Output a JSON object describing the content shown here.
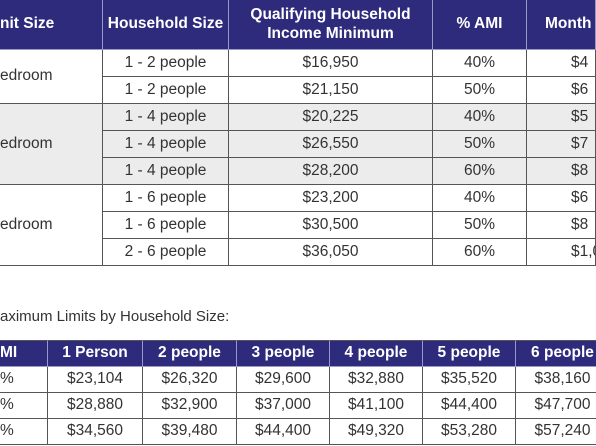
{
  "table1": {
    "header": [
      "nit Size",
      "Household Size",
      "Qualifying Household Income Minimum",
      "% AMI",
      "Month"
    ],
    "groups": [
      {
        "unit": "edroom",
        "rows": [
          [
            "1 - 2 people",
            "$16,950",
            "40%",
            "$4"
          ],
          [
            "1 - 2 people",
            "$21,150",
            "50%",
            "$6"
          ]
        ]
      },
      {
        "unit": "edroom",
        "rows": [
          [
            "1 - 4 people",
            "$20,225",
            "40%",
            "$5"
          ],
          [
            "1 - 4 people",
            "$26,550",
            "50%",
            "$7"
          ],
          [
            "1 - 4 people",
            "$28,200",
            "60%",
            "$8"
          ]
        ]
      },
      {
        "unit": "edroom",
        "rows": [
          [
            "1 - 6 people",
            "$23,200",
            "40%",
            "$6"
          ],
          [
            "1 - 6 people",
            "$30,500",
            "50%",
            "$8"
          ],
          [
            "2 - 6 people",
            "$36,050",
            "60%",
            "$1,0"
          ]
        ]
      }
    ]
  },
  "caption": "aximum Limits by Household Size:",
  "table2": {
    "header": [
      "MI",
      "1 Person",
      "2 people",
      "3 people",
      "4 people",
      "5 people",
      "6 people"
    ],
    "rows": [
      [
        "%",
        "$23,104",
        "$26,320",
        "$29,600",
        "$32,880",
        "$35,520",
        "$38,160"
      ],
      [
        "%",
        "$28,880",
        "$32,900",
        "$37,000",
        "$41,100",
        "$44,400",
        "$47,700"
      ],
      [
        "%",
        "$34,560",
        "$39,480",
        "$44,400",
        "$49,320",
        "$53,280",
        "$57,240"
      ]
    ]
  }
}
